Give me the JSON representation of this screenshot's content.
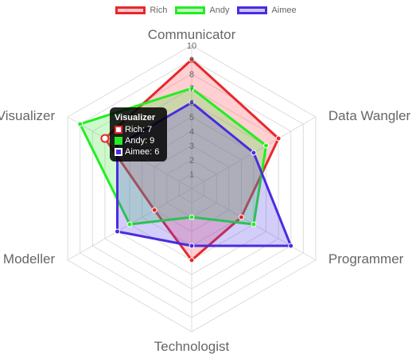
{
  "chart_data": {
    "type": "radar",
    "labels": [
      "Communicator",
      "Data Wangler",
      "Programmer",
      "Technologist",
      "Modeller",
      "Visualizer"
    ],
    "r_min": 0,
    "r_max": 10,
    "ticks": [
      1,
      2,
      3,
      4,
      5,
      6,
      7,
      8,
      9,
      10
    ],
    "grid": true,
    "legend_position": "top",
    "series": [
      {
        "name": "Rich",
        "values": [
          9,
          7,
          4,
          5,
          3,
          7
        ],
        "border_color": "#e8272d",
        "fill_color": "rgba(255,70,80,0.26)"
      },
      {
        "name": "Andy",
        "values": [
          7,
          6,
          5,
          2,
          5,
          9
        ],
        "border_color": "#22ee22",
        "fill_color": "rgba(60,230,60,0.26)"
      },
      {
        "name": "Aimee",
        "values": [
          6,
          5,
          8,
          4,
          6,
          6
        ],
        "border_color": "#4b2be0",
        "fill_color": "rgba(80,60,230,0.26)"
      }
    ]
  },
  "tooltip": {
    "title": "Visualizer",
    "rows": [
      {
        "text": "Rich: 7",
        "color": "#e8272d"
      },
      {
        "text": "Andy: 9",
        "color": "#22ee22"
      },
      {
        "text": "Aimee: 6",
        "color": "#4b2be0"
      }
    ]
  }
}
